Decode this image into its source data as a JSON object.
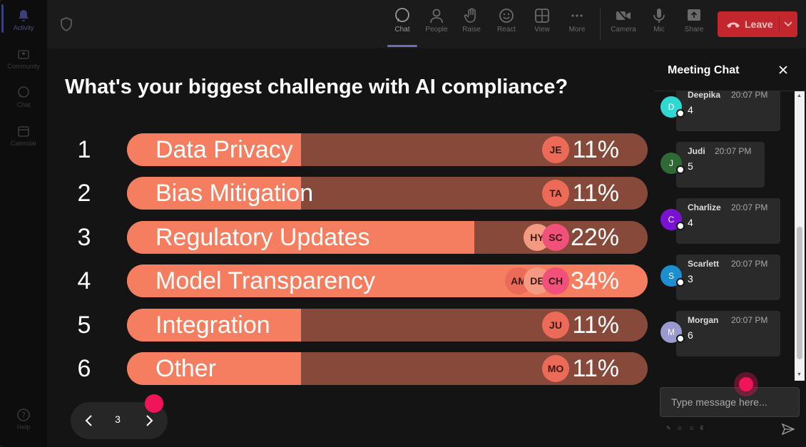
{
  "rail": {
    "items": [
      {
        "label": "Activity",
        "icon": "bell-icon"
      },
      {
        "label": "Community",
        "icon": "community-icon"
      },
      {
        "label": "Chat",
        "icon": "chat-icon"
      },
      {
        "label": "Calendar",
        "icon": "calendar-icon"
      },
      {
        "label": "Help",
        "icon": "help-icon"
      }
    ]
  },
  "toolbar": {
    "items": [
      {
        "label": "Chat",
        "icon": "chat-icon"
      },
      {
        "label": "People",
        "icon": "people-icon"
      },
      {
        "label": "Raise",
        "icon": "hand-icon"
      },
      {
        "label": "React",
        "icon": "smiley-icon"
      },
      {
        "label": "View",
        "icon": "grid-icon"
      },
      {
        "label": "More",
        "icon": "more-icon"
      },
      {
        "label": "Camera",
        "icon": "camera-off-icon"
      },
      {
        "label": "Mic",
        "icon": "mic-icon"
      },
      {
        "label": "Share",
        "icon": "share-icon"
      }
    ],
    "leave_label": "Leave"
  },
  "poll": {
    "title": "What's your biggest challenge with AI compliance?",
    "options": [
      {
        "num": "1",
        "label": "Data Privacy",
        "pct": "11%",
        "fraction": 0.11,
        "voters": [
          "JE"
        ]
      },
      {
        "num": "2",
        "label": "Bias Mitigation",
        "pct": "11%",
        "fraction": 0.11,
        "voters": [
          "TA"
        ]
      },
      {
        "num": "3",
        "label": "Regulatory Updates",
        "pct": "22%",
        "fraction": 0.22,
        "voters": [
          "HY",
          "SC"
        ]
      },
      {
        "num": "4",
        "label": "Model Transparency",
        "pct": "34%",
        "fraction": 0.34,
        "voters": [
          "AM",
          "DE",
          "CH"
        ]
      },
      {
        "num": "5",
        "label": "Integration",
        "pct": "11%",
        "fraction": 0.11,
        "voters": [
          "JU"
        ]
      },
      {
        "num": "6",
        "label": "Other",
        "pct": "11%",
        "fraction": 0.11,
        "voters": [
          "MO"
        ]
      }
    ],
    "colors": {
      "fill": "#f47e5f",
      "track": "#874a3a"
    }
  },
  "pager": {
    "page": "3"
  },
  "chat": {
    "title": "Meeting Chat",
    "messages": [
      {
        "initial": "D",
        "name": "Deepika",
        "time": "20:07 PM",
        "text": "4",
        "color": "#2fd9d2"
      },
      {
        "initial": "J",
        "name": "Judi",
        "time": "20:07 PM",
        "text": "5",
        "color": "#2e6b34"
      },
      {
        "initial": "C",
        "name": "Charlize",
        "time": "20:07 PM",
        "text": "4",
        "color": "#7a12d4"
      },
      {
        "initial": "S",
        "name": "Scarlett",
        "time": "20:07 PM",
        "text": "3",
        "color": "#1b8fd0"
      },
      {
        "initial": "M",
        "name": "Morgan",
        "time": "20:07 PM",
        "text": "6",
        "color": "#9a9ad0"
      }
    ],
    "input_placeholder": "Type message here..."
  }
}
